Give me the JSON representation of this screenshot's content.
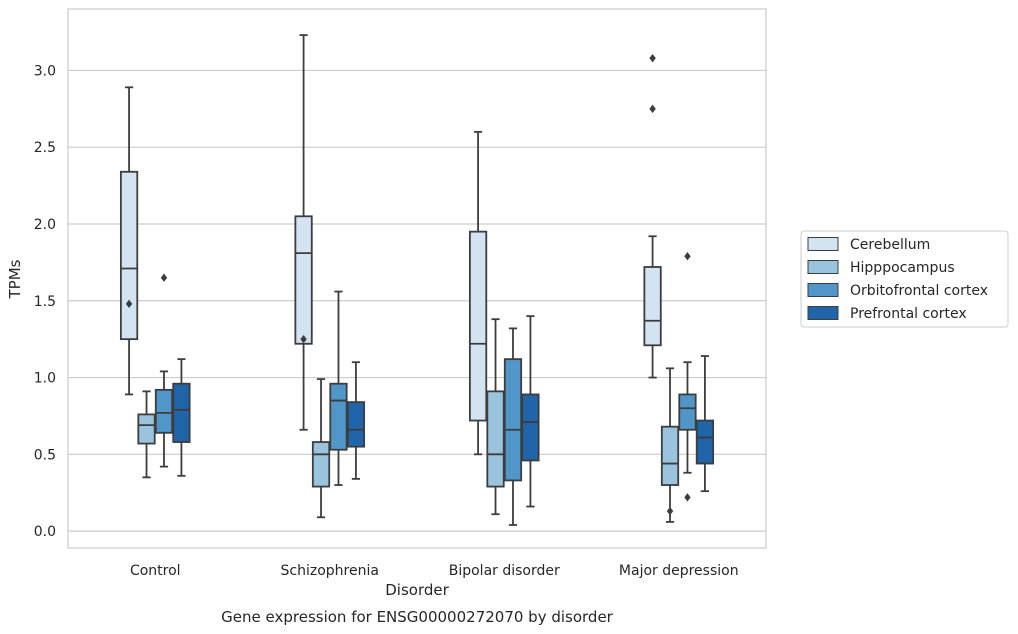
{
  "chart_data": {
    "type": "box",
    "caption": "Gene expression for ENSG00000272070 by disorder",
    "xlabel": "Disorder",
    "ylabel": "TPMs",
    "ylim": [
      -0.11,
      3.4
    ],
    "yticks": [
      0.0,
      0.5,
      1.0,
      1.5,
      2.0,
      2.5,
      3.0
    ],
    "ytick_labels": [
      "0.0",
      "0.5",
      "1.0",
      "1.5",
      "2.0",
      "2.5",
      "3.0"
    ],
    "grid": "horizontal",
    "legend_position": "right",
    "categories": [
      "Control",
      "Schizophrenia",
      "Bipolar disorder",
      "Major depression"
    ],
    "series": [
      {
        "name": "Cerebellum",
        "color": "#d3e3f1",
        "boxes": [
          {
            "whislo": 0.89,
            "q1": 1.25,
            "med": 1.71,
            "q3": 2.34,
            "whishi": 2.89,
            "fliers": [
              1.48
            ]
          },
          {
            "whislo": 0.66,
            "q1": 1.22,
            "med": 1.81,
            "q3": 2.05,
            "whishi": 3.23,
            "fliers": [
              1.25
            ]
          },
          {
            "whislo": 0.5,
            "q1": 0.72,
            "med": 1.22,
            "q3": 1.95,
            "whishi": 2.6,
            "fliers": []
          },
          {
            "whislo": 1.0,
            "q1": 1.21,
            "med": 1.37,
            "q3": 1.72,
            "whishi": 1.92,
            "fliers": [
              2.75,
              3.08
            ]
          }
        ]
      },
      {
        "name": "Hipppocampus",
        "color": "#9ac4de",
        "boxes": [
          {
            "whislo": 0.35,
            "q1": 0.57,
            "med": 0.69,
            "q3": 0.76,
            "whishi": 0.91,
            "fliers": []
          },
          {
            "whislo": 0.09,
            "q1": 0.29,
            "med": 0.5,
            "q3": 0.58,
            "whishi": 0.99,
            "fliers": []
          },
          {
            "whislo": 0.11,
            "q1": 0.29,
            "med": 0.5,
            "q3": 0.91,
            "whishi": 1.38,
            "fliers": []
          },
          {
            "whislo": 0.06,
            "q1": 0.3,
            "med": 0.44,
            "q3": 0.68,
            "whishi": 1.06,
            "fliers": [
              0.13
            ]
          }
        ]
      },
      {
        "name": "Orbitofrontal cortex",
        "color": "#5196c8",
        "boxes": [
          {
            "whislo": 0.42,
            "q1": 0.64,
            "med": 0.77,
            "q3": 0.92,
            "whishi": 1.04,
            "fliers": [
              1.65
            ]
          },
          {
            "whislo": 0.3,
            "q1": 0.53,
            "med": 0.85,
            "q3": 0.96,
            "whishi": 1.56,
            "fliers": []
          },
          {
            "whislo": 0.04,
            "q1": 0.33,
            "med": 0.66,
            "q3": 1.12,
            "whishi": 1.32,
            "fliers": []
          },
          {
            "whislo": 0.38,
            "q1": 0.66,
            "med": 0.8,
            "q3": 0.89,
            "whishi": 1.1,
            "fliers": [
              0.22,
              1.79
            ]
          }
        ]
      },
      {
        "name": "Prefrontal cortex",
        "color": "#2064a9",
        "boxes": [
          {
            "whislo": 0.36,
            "q1": 0.58,
            "med": 0.79,
            "q3": 0.96,
            "whishi": 1.12,
            "fliers": []
          },
          {
            "whislo": 0.34,
            "q1": 0.55,
            "med": 0.66,
            "q3": 0.84,
            "whishi": 1.1,
            "fliers": []
          },
          {
            "whislo": 0.16,
            "q1": 0.46,
            "med": 0.71,
            "q3": 0.89,
            "whishi": 1.4,
            "fliers": []
          },
          {
            "whislo": 0.26,
            "q1": 0.44,
            "med": 0.61,
            "q3": 0.72,
            "whishi": 1.14,
            "fliers": []
          }
        ]
      }
    ]
  }
}
